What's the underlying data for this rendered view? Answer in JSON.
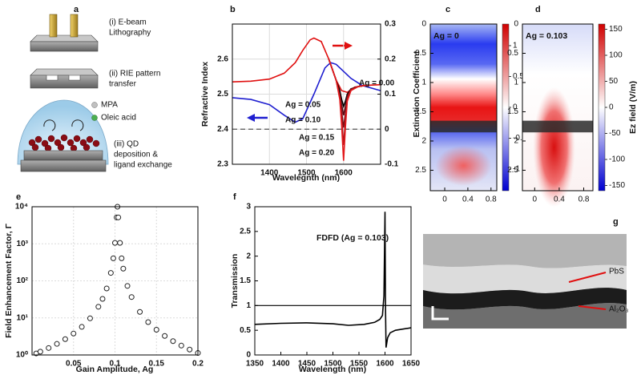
{
  "panel_labels": [
    "a",
    "b",
    "c",
    "d",
    "e",
    "f",
    "g"
  ],
  "panel_a": {
    "steps": [
      [
        "(i) E-beam",
        "Lithography"
      ],
      [
        "(ii) RIE pattern",
        "transfer"
      ],
      [
        "(iii) QD",
        "deposition &",
        "ligand exchange"
      ]
    ],
    "legend": [
      "MPA",
      "Oleic acid"
    ]
  },
  "panel_g": {
    "labels": [
      "PbS",
      "Al₂O₃"
    ]
  },
  "chart_data": [
    {
      "type": "line",
      "xlabel": "Wavelegnth (nm)",
      "ylabel": "Refractive Index",
      "y2label": "Extinction Coefficient",
      "xlim": [
        1300,
        1700
      ],
      "xticks": [
        1400,
        1500,
        1600
      ],
      "ylim": [
        2.3,
        2.7
      ],
      "yticks": [
        2.3,
        2.4,
        2.5,
        2.6
      ],
      "y2lim": [
        -0.1,
        0.3
      ],
      "y2ticks": [
        -0.1,
        0,
        0.1,
        0.2,
        0.3
      ],
      "grid": true,
      "hline": 2.4,
      "hline_style": "dashed",
      "series": [
        {
          "color": "#1f1fd0",
          "x": [
            1300,
            1350,
            1400,
            1440,
            1470,
            1490,
            1520,
            1550,
            1565,
            1580,
            1600,
            1620,
            1650,
            1700
          ],
          "values": [
            2.49,
            2.485,
            2.47,
            2.44,
            2.42,
            2.43,
            2.5,
            2.575,
            2.59,
            2.585,
            2.565,
            2.545,
            2.525,
            2.51
          ]
        },
        {
          "color": "#e01010",
          "axis": "y2",
          "x": [
            1300,
            1350,
            1400,
            1440,
            1470,
            1490,
            1510,
            1520,
            1540,
            1560,
            1580,
            1595,
            1610,
            1630,
            1660,
            1700
          ],
          "values": [
            0.135,
            0.137,
            0.143,
            0.16,
            0.19,
            0.225,
            0.255,
            0.26,
            0.25,
            0.2,
            0.14,
            0.11,
            0.105,
            0.12,
            0.125,
            0.127
          ]
        },
        {
          "name": "Ag = 0.00",
          "color": "#000000",
          "axis": "y2",
          "x": [
            1560,
            1580,
            1590,
            1595,
            1600,
            1605,
            1610,
            1620,
            1640,
            1660
          ],
          "values": [
            0.2,
            0.14,
            0.11,
            0.085,
            0.065,
            0.08,
            0.1,
            0.115,
            0.122,
            0.125
          ]
        },
        {
          "name": "Ag = 0.05",
          "color": "#5a0a12",
          "axis": "y2",
          "x": [
            1560,
            1580,
            1590,
            1595,
            1600,
            1605,
            1610,
            1620,
            1640,
            1660
          ],
          "values": [
            0.2,
            0.14,
            0.1,
            0.07,
            0.04,
            0.065,
            0.095,
            0.115,
            0.122,
            0.125
          ]
        },
        {
          "name": "Ag = 0.10",
          "color": "#7d1016",
          "axis": "y2",
          "x": [
            1560,
            1580,
            1590,
            1595,
            1600,
            1605,
            1610,
            1620,
            1640,
            1660
          ],
          "values": [
            0.2,
            0.14,
            0.095,
            0.05,
            0.005,
            0.045,
            0.09,
            0.113,
            0.122,
            0.125
          ]
        },
        {
          "name": "Ag = 0.15",
          "color": "#b0151c",
          "axis": "y2",
          "x": [
            1560,
            1580,
            1590,
            1595,
            1600,
            1605,
            1610,
            1620,
            1640,
            1660
          ],
          "values": [
            0.2,
            0.14,
            0.09,
            0.03,
            -0.045,
            0.025,
            0.085,
            0.112,
            0.122,
            0.125
          ]
        },
        {
          "name": "Ag = 0.20",
          "color": "#e31a1c",
          "axis": "y2",
          "x": [
            1560,
            1580,
            1590,
            1595,
            1600,
            1605,
            1610,
            1620,
            1640,
            1660
          ],
          "values": [
            0.2,
            0.14,
            0.085,
            0.01,
            -0.09,
            0.005,
            0.08,
            0.11,
            0.122,
            0.125
          ]
        }
      ]
    },
    {
      "type": "heatmap",
      "field": "standing",
      "annotation": "Ag = 0",
      "xlim": [
        -0.25,
        0.9
      ],
      "xticks": [
        0,
        0.4,
        0.8
      ],
      "ylim": [
        0,
        2.85
      ],
      "y_inverted": true,
      "yticks": [
        0,
        0.5,
        1,
        1.5,
        2,
        2.5
      ],
      "clim": [
        -1.35,
        1.35
      ],
      "cticks": [
        -1,
        -0.5,
        0,
        0.5,
        1
      ]
    },
    {
      "type": "heatmap",
      "field": "resonant",
      "annotation": "Ag = 0.103",
      "clabel": "Ez field (V/m)",
      "xlim": [
        -0.2,
        0.95
      ],
      "xticks": [
        0,
        0.4,
        0.8
      ],
      "ylim": [
        0,
        2.85
      ],
      "y_inverted": true,
      "yticks": [
        0,
        0.5,
        1,
        1.5,
        2,
        2.5
      ],
      "clim": [
        -160,
        160
      ],
      "cticks": [
        -150,
        -100,
        -50,
        0,
        50,
        100,
        150
      ]
    },
    {
      "type": "scatter",
      "xlabel": "Gain Amplitude, Ag",
      "ylabel": "Field Enhancement Factor, Γ",
      "xlim": [
        0,
        0.2
      ],
      "xticks": [
        0.05,
        0.1,
        0.15,
        0.2
      ],
      "ylim": [
        1,
        10000
      ],
      "log_y": true,
      "yticks": [
        {
          "value": 1,
          "label": "10⁰"
        },
        {
          "value": 10,
          "label": "10¹"
        },
        {
          "value": 100,
          "label": "10²"
        },
        {
          "value": 1000,
          "label": "10³"
        },
        {
          "value": 10000,
          "label": "10⁴"
        }
      ],
      "grid": true,
      "color": "#222222",
      "marker_fill": "#ffffff",
      "x": [
        0.005,
        0.01,
        0.02,
        0.03,
        0.04,
        0.05,
        0.06,
        0.07,
        0.08,
        0.085,
        0.09,
        0.095,
        0.098,
        0.1,
        0.102,
        0.103,
        0.104,
        0.106,
        0.108,
        0.11,
        0.115,
        0.12,
        0.13,
        0.14,
        0.15,
        0.16,
        0.17,
        0.18,
        0.19,
        0.2
      ],
      "values": [
        1.1,
        1.23,
        1.54,
        1.99,
        2.67,
        3.78,
        5.73,
        9.73,
        20,
        32.6,
        62.4,
        164,
        406,
        1056,
        5150,
        10000,
        5150,
        1056,
        406,
        214,
        73,
        36.6,
        14.5,
        7.7,
        4.8,
        3.26,
        2.36,
        1.79,
        1.4,
        1.13
      ]
    },
    {
      "type": "line",
      "xlabel": "Wavelength (nm)",
      "ylabel": "Transmission",
      "annotation": "FDFD (Ag = 0.103)",
      "xlim": [
        1350,
        1650
      ],
      "xticks": [
        1350,
        1400,
        1450,
        1500,
        1550,
        1600,
        1650
      ],
      "ylim": [
        0,
        3
      ],
      "yticks": [
        0,
        0.5,
        1,
        1.5,
        2,
        2.5,
        3
      ],
      "grid": false,
      "hline": 1,
      "hline_style": "solid",
      "series": [
        {
          "color": "#000000",
          "x": [
            1350,
            1400,
            1450,
            1500,
            1530,
            1560,
            1580,
            1590,
            1595,
            1598,
            1600,
            1601,
            1602,
            1605,
            1610,
            1620,
            1650
          ],
          "values": [
            0.62,
            0.64,
            0.65,
            0.63,
            0.6,
            0.62,
            0.66,
            0.72,
            0.8,
            1.2,
            2.9,
            1,
            0.15,
            0.35,
            0.45,
            0.5,
            0.55
          ]
        }
      ]
    }
  ]
}
